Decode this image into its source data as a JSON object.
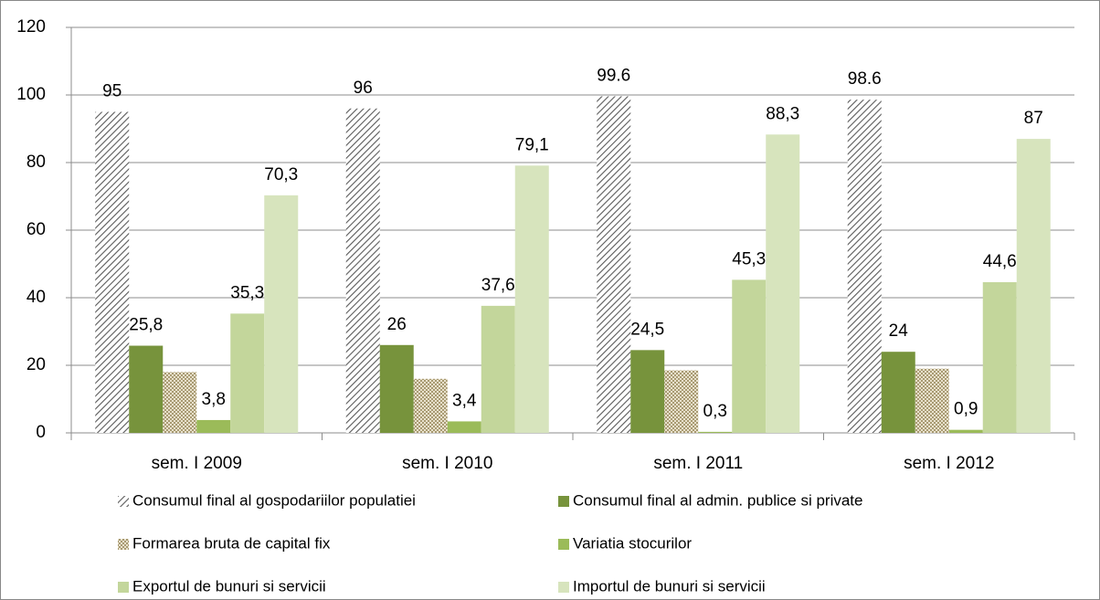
{
  "chart_data": {
    "type": "bar",
    "categories": [
      "sem. I 2009",
      "sem. I 2010",
      "sem. I 2011",
      "sem. I 2012"
    ],
    "series": [
      {
        "name": "Consumul final al gospodariilor populatiei",
        "color": "#595959",
        "pattern": "diagonal",
        "values": [
          95,
          96,
          99.6,
          98.6
        ]
      },
      {
        "name": "Consumul final al admin. publice si private",
        "color": "#77933c",
        "values": [
          25.8,
          26,
          24.5,
          24
        ],
        "value_labels": [
          "25,8",
          "26",
          "24,5",
          "24"
        ]
      },
      {
        "name": "Formarea bruta de capital fix",
        "color": "#b8ab86",
        "pattern": "checker",
        "values": [
          18,
          16,
          18.5,
          19
        ]
      },
      {
        "name": "Variatia stocurilor",
        "color": "#9bbb59",
        "values": [
          3.8,
          3.4,
          0.3,
          0.9
        ],
        "value_labels": [
          "3,8",
          "3,4",
          "0,3",
          "0,9"
        ]
      },
      {
        "name": "Exportul de bunuri si servicii",
        "color": "#c3d69b",
        "values": [
          35.3,
          37.6,
          45.3,
          44.6
        ],
        "value_labels": [
          "35,3",
          "37,6",
          "45,3",
          "44,6"
        ]
      },
      {
        "name": "Importul de bunuri si servicii",
        "color": "#d7e4bd",
        "values": [
          70.3,
          79.1,
          88.3,
          87
        ],
        "value_labels": [
          "70,3",
          "79,1",
          "88,3",
          "87"
        ]
      }
    ],
    "ylim": [
      0,
      120
    ],
    "yticks": [
      0,
      20,
      40,
      60,
      80,
      100,
      120
    ],
    "grid": true
  }
}
